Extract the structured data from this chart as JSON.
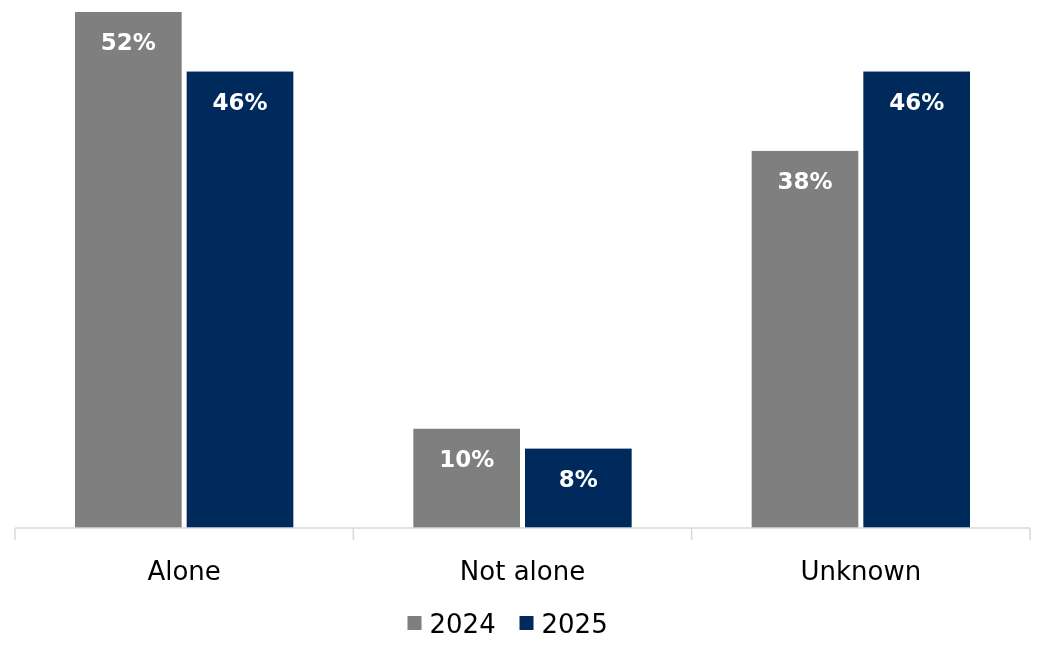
{
  "chart_data": {
    "type": "bar",
    "categories": [
      "Alone",
      "Not alone",
      "Unknown"
    ],
    "series": [
      {
        "name": "2024",
        "color": "#7f7f7f",
        "values": [
          52,
          10,
          38
        ],
        "value_labels": [
          "52%",
          "10%",
          "38%"
        ]
      },
      {
        "name": "2025",
        "color": "#002a5c",
        "values": [
          46,
          8,
          46
        ],
        "value_labels": [
          "46%",
          "8%",
          "46%"
        ]
      }
    ],
    "legend": "bottom"
  }
}
